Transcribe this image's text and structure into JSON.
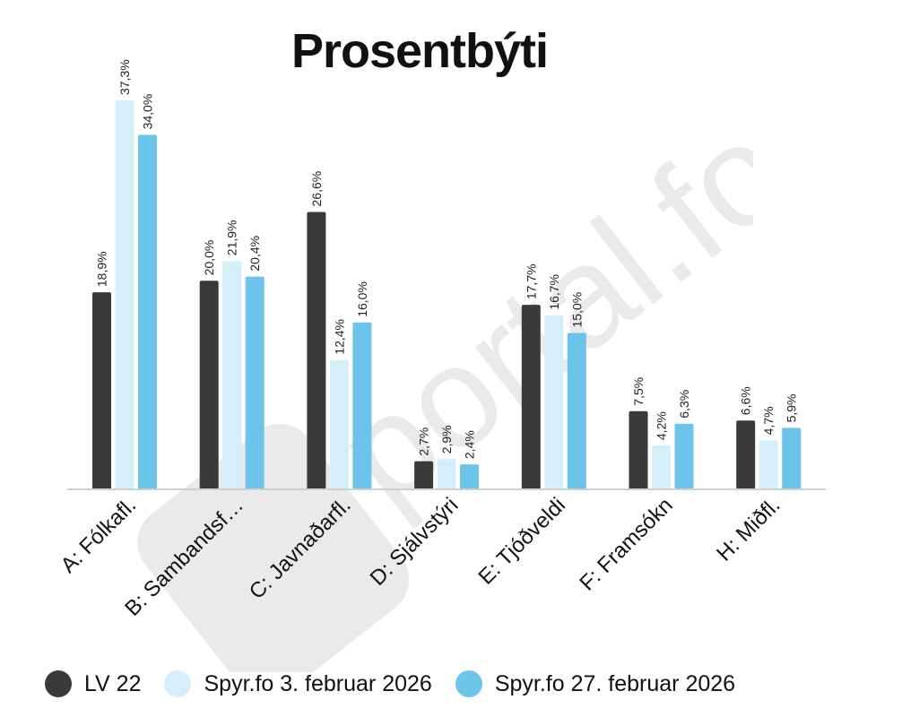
{
  "chart_data": {
    "type": "bar",
    "title": "Prosentbýti",
    "categories": [
      "A: Fólkafl.",
      "B: Sambandsf…",
      "C: Javnaðarfl.",
      "D: Sjálvstýri",
      "E: Tjóðveldi",
      "F: Framsókn",
      "H: Miðfl."
    ],
    "series": [
      {
        "name": "LV 22",
        "color": "#3a3a3a",
        "values": [
          18.9,
          20.0,
          26.6,
          2.7,
          17.7,
          7.5,
          6.6
        ],
        "labels": [
          "18,9%",
          "20,0%",
          "26,6%",
          "2,7%",
          "17,7%",
          "7,5%",
          "6,6%"
        ]
      },
      {
        "name": "Spyr.fo 3. februar 2026",
        "color": "#d4effa",
        "values": [
          37.3,
          21.9,
          12.4,
          2.9,
          16.7,
          4.2,
          4.7
        ],
        "labels": [
          "37,3%",
          "21,9%",
          "12,4%",
          "2,9%",
          "16,7%",
          "4,2%",
          "4,7%"
        ]
      },
      {
        "name": "Spyr.fo 27. februar 2026",
        "color": "#6cc4ea",
        "values": [
          34.0,
          20.4,
          16.0,
          2.4,
          15.0,
          6.3,
          5.9
        ],
        "labels": [
          "34,0%",
          "20,4%",
          "16,0%",
          "2,4%",
          "15,0%",
          "6,3%",
          "5,9%"
        ]
      }
    ],
    "ylim": [
      0,
      40
    ],
    "grid": false,
    "legend_position": "bottom"
  },
  "watermark": "portal.fo"
}
